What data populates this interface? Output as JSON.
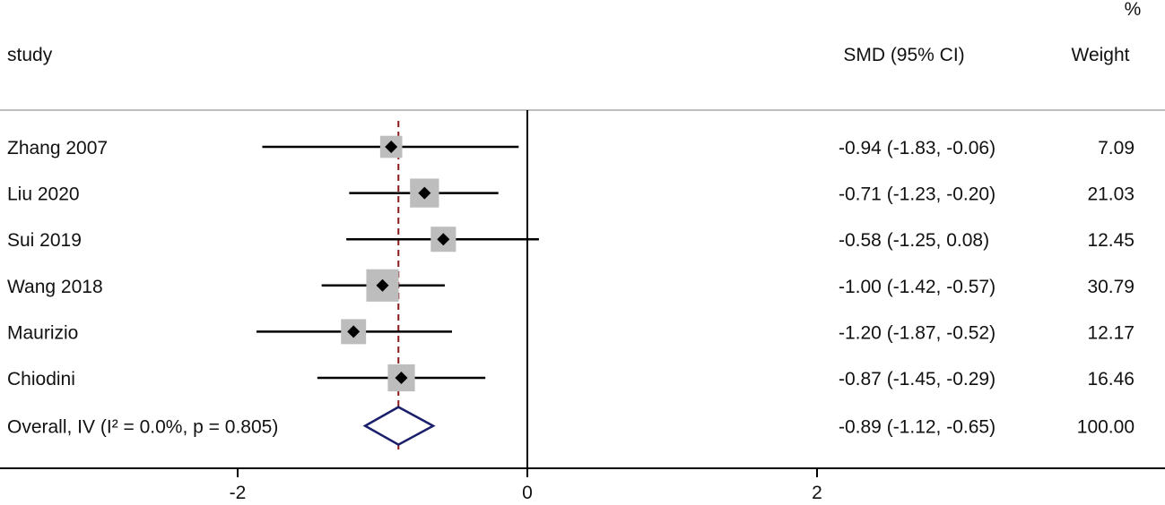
{
  "chart_data": {
    "type": "forest",
    "header": {
      "study_label": "study",
      "effect_label": "SMD (95% CI)",
      "weight_label_top": "%",
      "weight_label": "Weight"
    },
    "studies": [
      {
        "name": "Zhang 2007",
        "smd": -0.94,
        "lower": -1.83,
        "upper": -0.06,
        "weight": 7.09,
        "ci_text": "-0.94 (-1.83, -0.06)",
        "weight_text": "7.09"
      },
      {
        "name": "Liu 2020",
        "smd": -0.71,
        "lower": -1.23,
        "upper": -0.2,
        "weight": 21.03,
        "ci_text": "-0.71 (-1.23, -0.20)",
        "weight_text": "21.03"
      },
      {
        "name": "Sui 2019",
        "smd": -0.58,
        "lower": -1.25,
        "upper": 0.08,
        "weight": 12.45,
        "ci_text": "-0.58 (-1.25, 0.08)",
        "weight_text": "12.45"
      },
      {
        "name": "Wang 2018",
        "smd": -1.0,
        "lower": -1.42,
        "upper": -0.57,
        "weight": 30.79,
        "ci_text": "-1.00 (-1.42, -0.57)",
        "weight_text": "30.79"
      },
      {
        "name": "Maurizio",
        "smd": -1.2,
        "lower": -1.87,
        "upper": -0.52,
        "weight": 12.17,
        "ci_text": "-1.20 (-1.87, -0.52)",
        "weight_text": "12.17"
      },
      {
        "name": "Chiodini",
        "smd": -0.87,
        "lower": -1.45,
        "upper": -0.29,
        "weight": 16.46,
        "ci_text": "-0.87 (-1.45, -0.29)",
        "weight_text": "16.46"
      }
    ],
    "overall": {
      "name": "Overall, IV (I² = 0.0%, p = 0.805)",
      "smd": -0.89,
      "lower": -1.12,
      "upper": -0.65,
      "weight": 100.0,
      "ci_text": "-0.89 (-1.12, -0.65)",
      "weight_text": "100.00"
    },
    "x_ticks": [
      -2,
      0,
      2
    ],
    "x_tick_labels": [
      "-2",
      "0",
      "2"
    ],
    "xlim": [
      -3.6,
      4.45
    ],
    "colors": {
      "ci_line": "#000000",
      "weight_box": "#bdbdbd",
      "point": "#000000",
      "diamond": "#1a1f6b",
      "overall_line": "#8b1a1a",
      "null_line": "#000000",
      "rule": "#bdbdbd"
    }
  }
}
